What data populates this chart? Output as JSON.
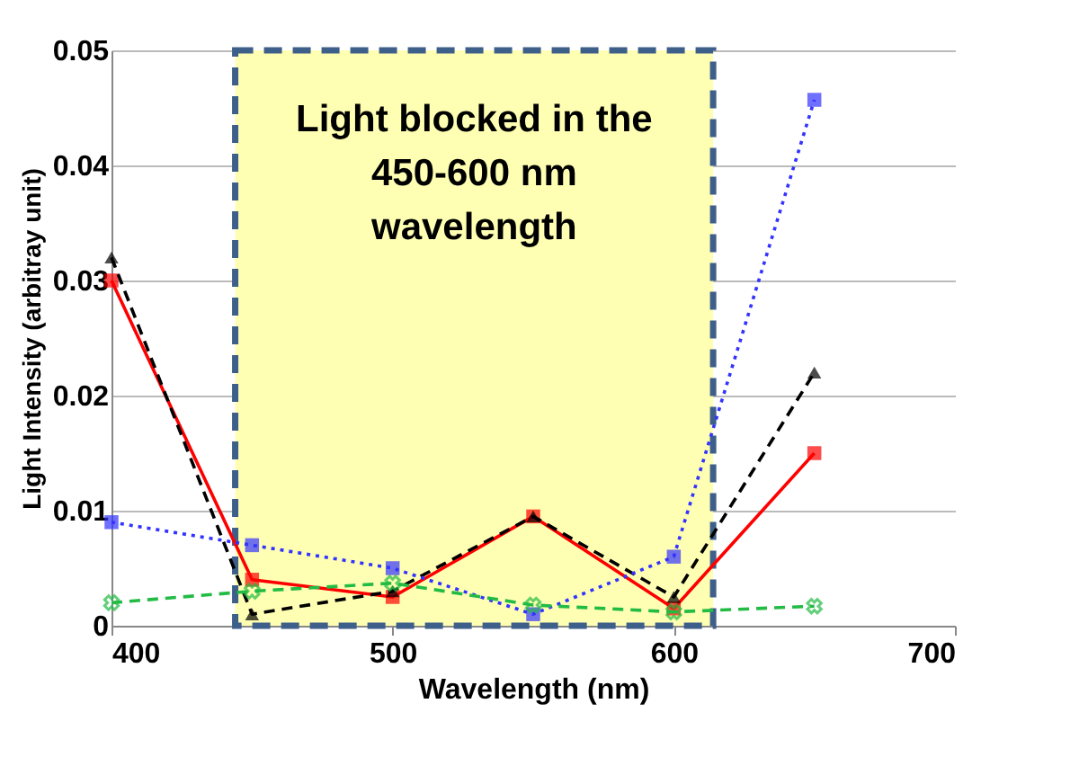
{
  "chart_data": {
    "type": "line",
    "xlabel": "Wavelength (nm)",
    "ylabel": "Light Intensity (arbitray unit)",
    "x": [
      400,
      450,
      500,
      550,
      600,
      650
    ],
    "xlim": [
      400,
      700
    ],
    "xticks": [
      400,
      500,
      600,
      700
    ],
    "ylim": [
      0,
      0.05
    ],
    "yticks": [
      {
        "value": 0,
        "label": "0"
      },
      0.01,
      0.02,
      0.03,
      0.04,
      0.05
    ],
    "grid": "y",
    "bands": [
      {
        "axis": "x",
        "from": 444,
        "to": 614,
        "label": "Light blocked in the\n450-600 nm\nwavelength",
        "color": "#ffffb3"
      }
    ],
    "series": [
      {
        "color": "#ff0000",
        "marker": "square",
        "line_style": "solid",
        "values": [
          0.03,
          0.004,
          0.0025,
          0.0095,
          0.0015,
          0.015
        ]
      },
      {
        "color": "#000000",
        "marker": "triangle",
        "line_style": "dashed",
        "values": [
          0.032,
          0.001,
          0.003,
          0.0095,
          0.0025,
          0.022
        ]
      },
      {
        "color": "#3333ff",
        "marker": "square",
        "line_style": "dotted",
        "values": [
          0.009,
          0.007,
          0.005,
          0.001,
          0.006,
          0.0457
        ]
      },
      {
        "color": "#22bb44",
        "marker": "cross",
        "line_style": "dashed",
        "values": [
          0.002,
          0.003,
          0.0037,
          0.0018,
          0.0012,
          0.0017
        ]
      }
    ]
  }
}
